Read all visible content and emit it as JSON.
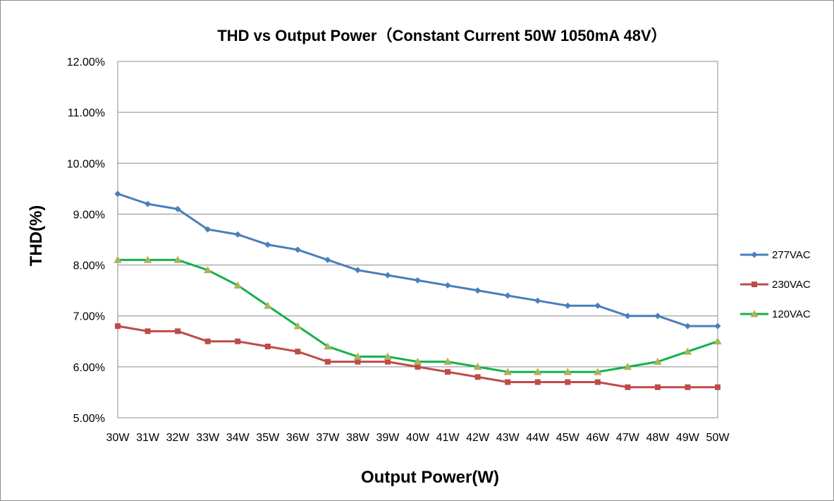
{
  "chart_data": {
    "type": "line",
    "title": "THD vs Output Power（Constant Current 50W   1050mA 48V）",
    "xlabel": "Output Power(W)",
    "ylabel": "THD(%)",
    "categories": [
      "30W",
      "31W",
      "32W",
      "33W",
      "34W",
      "35W",
      "36W",
      "37W",
      "38W",
      "39W",
      "40W",
      "41W",
      "42W",
      "43W",
      "44W",
      "45W",
      "46W",
      "47W",
      "48W",
      "49W",
      "50W"
    ],
    "ylim": [
      5.0,
      12.0
    ],
    "yticks": [
      "5.00%",
      "6.00%",
      "7.00%",
      "8.00%",
      "9.00%",
      "10.00%",
      "11.00%",
      "12.00%"
    ],
    "grid": true,
    "legend_position": "right",
    "series": [
      {
        "name": "277VAC",
        "color": "#4a7ebb",
        "marker": "diamond",
        "values": [
          9.4,
          9.2,
          9.1,
          8.7,
          8.6,
          8.4,
          8.3,
          8.1,
          7.9,
          7.8,
          7.7,
          7.6,
          7.5,
          7.4,
          7.3,
          7.2,
          7.2,
          7.0,
          7.0,
          6.8,
          6.8
        ]
      },
      {
        "name": "230VAC",
        "color": "#be4b48",
        "marker": "square",
        "values": [
          6.8,
          6.7,
          6.7,
          6.5,
          6.5,
          6.4,
          6.3,
          6.1,
          6.1,
          6.1,
          6.0,
          5.9,
          5.8,
          5.7,
          5.7,
          5.7,
          5.7,
          5.6,
          5.6,
          5.6,
          5.6
        ]
      },
      {
        "name": "120VAC",
        "color": "#13b14b",
        "marker": "triangle",
        "values": [
          8.1,
          8.1,
          8.1,
          7.9,
          7.6,
          7.2,
          6.8,
          6.4,
          6.2,
          6.2,
          6.1,
          6.1,
          6.0,
          5.9,
          5.9,
          5.9,
          5.9,
          6.0,
          6.1,
          6.3,
          6.5
        ]
      }
    ]
  }
}
